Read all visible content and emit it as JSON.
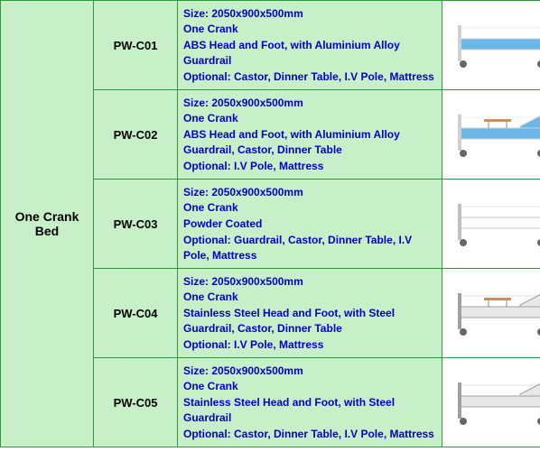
{
  "category": "One Crank Bed",
  "rows": [
    {
      "model": "PW-C01",
      "size": "Size: 2050x900x500mm",
      "crank": "One Crank",
      "desc": "ABS Head and Foot, with Aluminium Alloy Guardrail",
      "optional": "Optional: Castor, Dinner Table, I.V Pole, Mattress",
      "bed_color": "#6bb8e8",
      "frame_color": "#d0d0d0"
    },
    {
      "model": "PW-C02",
      "size": "Size: 2050x900x500mm",
      "crank": "One Crank",
      "desc": "ABS Head and Foot, with Aluminium Alloy Guardrail, Castor, Dinner Table",
      "optional": "Optional: I.V Pole, Mattress",
      "bed_color": "#6bb8e8",
      "frame_color": "#d0d0d0"
    },
    {
      "model": "PW-C03",
      "size": "Size: 2050x900x500mm",
      "crank": "One Crank",
      "desc": "Powder Coated",
      "optional": "Optional: Guardrail, Castor, Dinner Table, I.V Pole, Mattress",
      "bed_color": "#ffffff",
      "frame_color": "#c0c0c0"
    },
    {
      "model": "PW-C04",
      "size": "Size: 2050x900x500mm",
      "crank": "One Crank",
      "desc": "Stainless Steel Head and Foot, with Steel Guardrail, Castor, Dinner Table",
      "optional": "Optional: I.V Pole, Mattress",
      "bed_color": "#e8e8e8",
      "frame_color": "#a0a0a0"
    },
    {
      "model": "PW-C05",
      "size": "Size: 2050x900x500mm",
      "crank": "One Crank",
      "desc": "Stainless Steel Head and Foot, with Steel Guardrail",
      "optional": "Optional: Castor, Dinner Table, I.V Pole, Mattress",
      "bed_color": "#e8e8e8",
      "frame_color": "#a0a0a0"
    }
  ],
  "colors": {
    "cell_bg": "#c8f0c8",
    "border": "#2a9d3a",
    "desc_text": "#0000cc",
    "label_text": "#000000"
  }
}
